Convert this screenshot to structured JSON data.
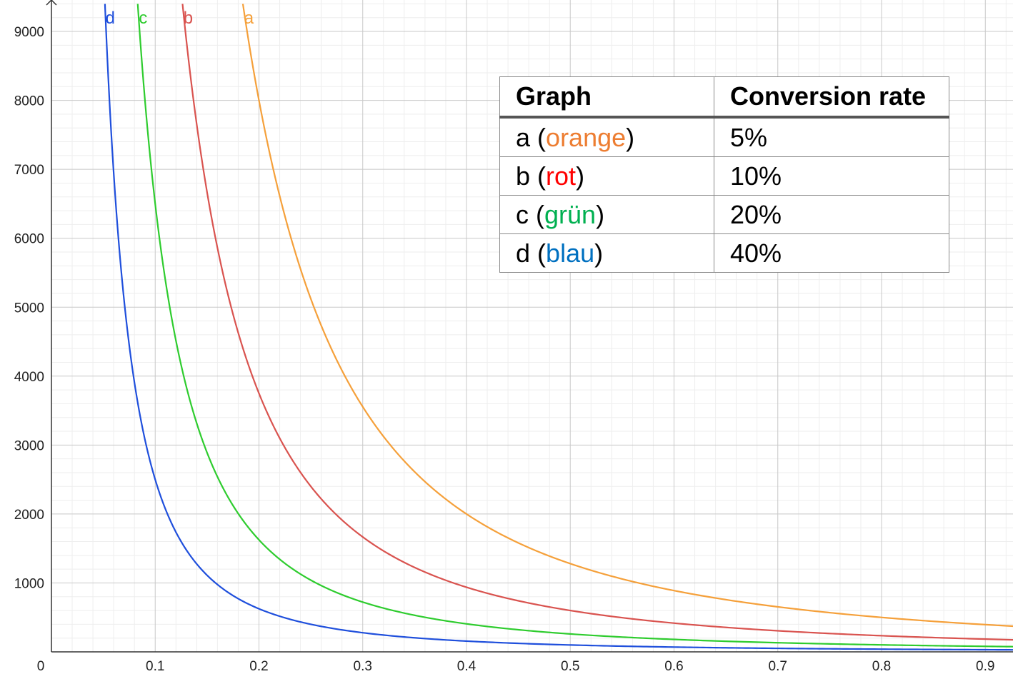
{
  "chart_data": {
    "type": "line",
    "title": "",
    "xlabel": "",
    "ylabel": "",
    "xlim": [
      0,
      0.92
    ],
    "ylim": [
      0,
      9400
    ],
    "x_ticks": [
      "0.1",
      "0.2",
      "0.3",
      "0.4",
      "0.5",
      "0.6",
      "0.7",
      "0.8",
      "0.9"
    ],
    "y_ticks": [
      "1000",
      "2000",
      "3000",
      "4000",
      "5000",
      "6000",
      "7000",
      "8000",
      "9000"
    ],
    "origin_label": "0",
    "grid": true,
    "series": [
      {
        "name": "a",
        "color": "#f5a03a",
        "k": 320
      },
      {
        "name": "b",
        "color": "#d9534f",
        "k": 150
      },
      {
        "name": "c",
        "color": "#2ecc2e",
        "k": 65
      },
      {
        "name": "d",
        "color": "#1f4fdc",
        "k": 25
      }
    ],
    "series_points": {
      "a": [
        [
          0.2,
          8000
        ],
        [
          0.3,
          3556
        ],
        [
          0.4,
          2000
        ],
        [
          0.5,
          1280
        ],
        [
          0.6,
          889
        ],
        [
          0.7,
          653
        ],
        [
          0.8,
          500
        ],
        [
          0.9,
          395
        ]
      ],
      "b": [
        [
          0.13,
          8876
        ],
        [
          0.2,
          3750
        ],
        [
          0.3,
          1667
        ],
        [
          0.4,
          938
        ],
        [
          0.5,
          600
        ],
        [
          0.6,
          417
        ],
        [
          0.7,
          306
        ],
        [
          0.8,
          234
        ],
        [
          0.9,
          185
        ]
      ],
      "c": [
        [
          0.09,
          8025
        ],
        [
          0.1,
          6500
        ],
        [
          0.2,
          1625
        ],
        [
          0.3,
          722
        ],
        [
          0.4,
          406
        ],
        [
          0.5,
          260
        ],
        [
          0.6,
          181
        ],
        [
          0.7,
          133
        ],
        [
          0.8,
          102
        ],
        [
          0.9,
          80
        ]
      ],
      "d": [
        [
          0.06,
          6944
        ],
        [
          0.1,
          2500
        ],
        [
          0.2,
          625
        ],
        [
          0.3,
          278
        ],
        [
          0.4,
          156
        ],
        [
          0.5,
          100
        ],
        [
          0.6,
          69
        ],
        [
          0.7,
          51
        ],
        [
          0.8,
          39
        ],
        [
          0.9,
          31
        ]
      ]
    }
  },
  "legend_table": {
    "headers": [
      "Graph",
      "Conversion rate"
    ],
    "rows": [
      {
        "letter": "a",
        "open": "(",
        "color_word": "orange",
        "close": ")",
        "color": "#ed7d31",
        "rate": "5%"
      },
      {
        "letter": "b",
        "open": "(",
        "color_word": "rot",
        "close": ")",
        "color": "#ff0000",
        "rate": "10%"
      },
      {
        "letter": "c",
        "open": "(",
        "color_word": "grün",
        "close": ")",
        "color": "#00b050",
        "rate": "20%"
      },
      {
        "letter": "d",
        "open": "(",
        "color_word": "blau",
        "close": ")",
        "color": "#0070c0",
        "rate": "40%"
      }
    ]
  }
}
